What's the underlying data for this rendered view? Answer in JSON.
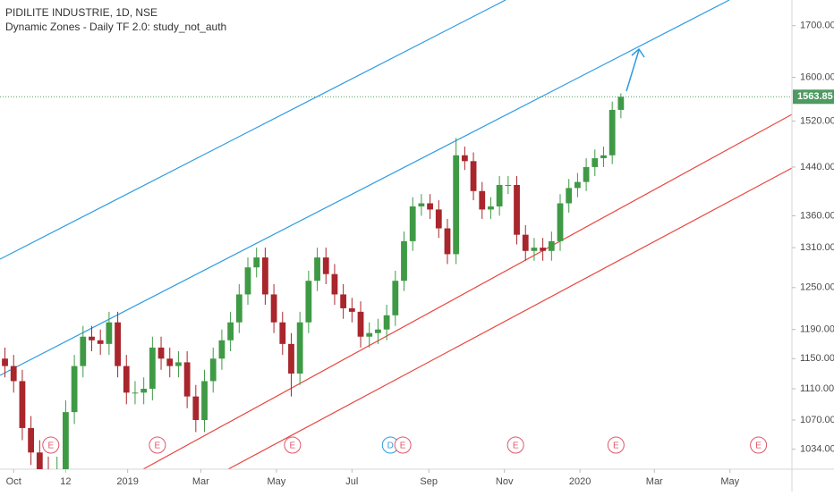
{
  "chart_data": {
    "type": "candlestick",
    "title": "PIDILITE INDUSTRIE, 1D, NSE",
    "subtitle": "Dynamic Zones - Daily TF 2.0: study_not_auth",
    "log_scale": true,
    "up_color": "#3f9a45",
    "down_color": "#a8262c",
    "ylim": [
      1010,
      1752
    ],
    "yticks": [
      {
        "value": 1700,
        "label": "1700.00"
      },
      {
        "value": 1600,
        "label": "1600.00"
      },
      {
        "value": 1520,
        "label": "1520.00"
      },
      {
        "value": 1440,
        "label": "1440.00"
      },
      {
        "value": 1360,
        "label": "1360.00"
      },
      {
        "value": 1310,
        "label": "1310.00"
      },
      {
        "value": 1250,
        "label": "1250.00"
      },
      {
        "value": 1190,
        "label": "1190.00"
      },
      {
        "value": 1150,
        "label": "1150.00"
      },
      {
        "value": 1110,
        "label": "1110.00"
      },
      {
        "value": 1070,
        "label": "1070.00"
      },
      {
        "value": 1034,
        "label": "1034.00"
      }
    ],
    "xlim": [
      -11,
      628
    ],
    "xticks": [
      {
        "value": 0,
        "label": "Oct"
      },
      {
        "value": 42,
        "label": "12"
      },
      {
        "value": 92,
        "label": "2019"
      },
      {
        "value": 151,
        "label": "Mar"
      },
      {
        "value": 212,
        "label": "May"
      },
      {
        "value": 273,
        "label": "Jul"
      },
      {
        "value": 335,
        "label": "Sep"
      },
      {
        "value": 396,
        "label": "Nov"
      },
      {
        "value": 457,
        "label": "2020"
      },
      {
        "value": 517,
        "label": "Mar"
      },
      {
        "value": 578,
        "label": "May"
      }
    ],
    "last_price": 1563.85,
    "last_price_color": "#4e9a62",
    "x": [
      -7,
      0,
      7,
      14,
      21,
      28,
      35,
      42,
      49,
      56,
      63,
      70,
      77,
      84,
      91,
      98,
      105,
      112,
      119,
      126,
      133,
      140,
      147,
      154,
      161,
      168,
      175,
      182,
      189,
      196,
      203,
      210,
      217,
      224,
      231,
      238,
      245,
      252,
      259,
      266,
      273,
      280,
      287,
      294,
      301,
      308,
      315,
      322,
      329,
      336,
      343,
      350,
      357,
      364,
      371,
      378,
      385,
      392,
      399,
      406,
      413,
      420,
      427,
      434,
      441,
      448,
      455,
      462,
      469,
      476,
      483,
      490
    ],
    "open": [
      1150,
      1140,
      1120,
      1060,
      1030,
      1010,
      1000,
      1010,
      1080,
      1140,
      1180,
      1175,
      1170,
      1200,
      1140,
      1105,
      1105,
      1110,
      1165,
      1150,
      1140,
      1145,
      1100,
      1070,
      1120,
      1150,
      1175,
      1200,
      1240,
      1280,
      1295,
      1240,
      1200,
      1170,
      1130,
      1200,
      1260,
      1295,
      1270,
      1240,
      1220,
      1215,
      1180,
      1185,
      1190,
      1210,
      1260,
      1320,
      1375,
      1380,
      1370,
      1340,
      1300,
      1460,
      1450,
      1400,
      1370,
      1375,
      1410,
      1410,
      1330,
      1305,
      1310,
      1305,
      1320,
      1380,
      1405,
      1415,
      1440,
      1455,
      1460,
      1540
    ],
    "high": [
      1165,
      1155,
      1135,
      1075,
      1045,
      1025,
      1025,
      1095,
      1155,
      1195,
      1195,
      1190,
      1215,
      1215,
      1155,
      1120,
      1125,
      1180,
      1180,
      1165,
      1160,
      1160,
      1115,
      1135,
      1165,
      1190,
      1215,
      1255,
      1295,
      1310,
      1310,
      1255,
      1215,
      1185,
      1215,
      1275,
      1310,
      1310,
      1285,
      1255,
      1235,
      1230,
      1200,
      1205,
      1225,
      1275,
      1335,
      1390,
      1395,
      1395,
      1385,
      1355,
      1490,
      1475,
      1465,
      1415,
      1390,
      1425,
      1425,
      1425,
      1345,
      1325,
      1325,
      1335,
      1395,
      1420,
      1430,
      1455,
      1470,
      1475,
      1555,
      1570
    ],
    "low": [
      1125,
      1105,
      1045,
      1015,
      995,
      985,
      985,
      995,
      1065,
      1125,
      1160,
      1155,
      1155,
      1125,
      1090,
      1090,
      1090,
      1095,
      1135,
      1125,
      1125,
      1085,
      1055,
      1055,
      1105,
      1135,
      1160,
      1185,
      1225,
      1265,
      1225,
      1185,
      1155,
      1100,
      1115,
      1185,
      1245,
      1255,
      1225,
      1205,
      1200,
      1165,
      1165,
      1170,
      1175,
      1195,
      1245,
      1305,
      1360,
      1355,
      1325,
      1285,
      1285,
      1435,
      1385,
      1355,
      1355,
      1360,
      1395,
      1315,
      1290,
      1290,
      1290,
      1290,
      1305,
      1365,
      1390,
      1400,
      1425,
      1440,
      1445,
      1525
    ],
    "close": [
      1140,
      1120,
      1060,
      1030,
      1010,
      1000,
      1010,
      1080,
      1140,
      1180,
      1175,
      1170,
      1200,
      1140,
      1105,
      1105,
      1110,
      1165,
      1150,
      1140,
      1145,
      1100,
      1070,
      1120,
      1150,
      1175,
      1200,
      1240,
      1280,
      1295,
      1240,
      1200,
      1170,
      1130,
      1200,
      1260,
      1295,
      1270,
      1240,
      1220,
      1215,
      1180,
      1185,
      1190,
      1210,
      1260,
      1320,
      1375,
      1380,
      1370,
      1340,
      1300,
      1460,
      1450,
      1400,
      1370,
      1375,
      1410,
      1410,
      1330,
      1305,
      1310,
      1305,
      1320,
      1380,
      1405,
      1415,
      1440,
      1455,
      1460,
      1540,
      1563.85
    ],
    "events": [
      {
        "x": 30,
        "label": "E",
        "color": "#e0566b"
      },
      {
        "x": 116,
        "label": "E",
        "color": "#e0566b"
      },
      {
        "x": 225,
        "label": "E",
        "color": "#e0566b"
      },
      {
        "x": 304,
        "label": "D",
        "color": "#2f9bdc"
      },
      {
        "x": 314,
        "label": "E",
        "color": "#e0566b"
      },
      {
        "x": 405,
        "label": "E",
        "color": "#e0566b"
      },
      {
        "x": 486,
        "label": "E",
        "color": "#e0566b"
      },
      {
        "x": 601,
        "label": "E",
        "color": "#e0566b"
      }
    ]
  }
}
